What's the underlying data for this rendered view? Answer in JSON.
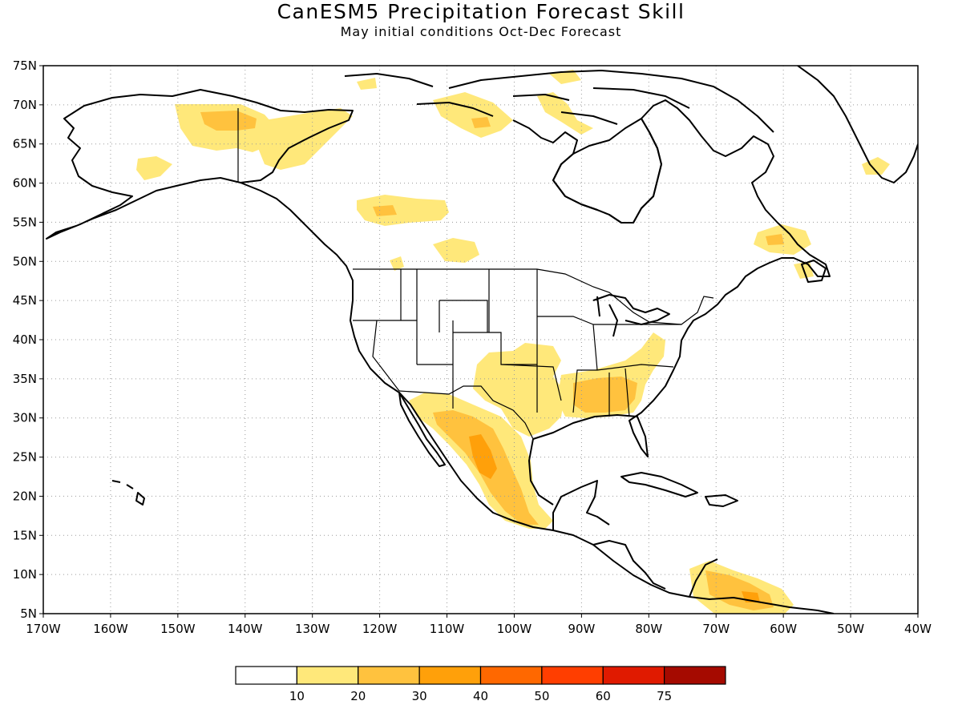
{
  "title": "CanESM5 Precipitation Forecast Skill",
  "subtitle": "May initial conditions  Oct-Dec Forecast",
  "map": {
    "region": "North America",
    "projection": "cylindrical lat-lon",
    "lon_range": [
      -170,
      -40
    ],
    "lat_range": [
      5,
      75
    ],
    "lat_ticks": [
      "5N",
      "10N",
      "15N",
      "20N",
      "25N",
      "30N",
      "35N",
      "40N",
      "45N",
      "50N",
      "55N",
      "60N",
      "65N",
      "70N",
      "75N"
    ],
    "lon_ticks": [
      "170W",
      "160W",
      "150W",
      "140W",
      "130W",
      "120W",
      "110W",
      "100W",
      "90W",
      "80W",
      "70W",
      "60W",
      "50W",
      "40W"
    ],
    "gridlines": "dotted",
    "skill_regions": [
      {
        "name": "alaska-north-slope",
        "level": "10-20"
      },
      {
        "name": "alaska-north-slope-core",
        "level": "20-30"
      },
      {
        "name": "yukon",
        "level": "10-20"
      },
      {
        "name": "alaska-southwest",
        "level": "10-20"
      },
      {
        "name": "central-canada",
        "level": "10-20"
      },
      {
        "name": "saskatchewan",
        "level": "10-20"
      },
      {
        "name": "arctic-archipelago",
        "level": "10-20"
      },
      {
        "name": "labrador",
        "level": "10-20"
      },
      {
        "name": "greenland-south",
        "level": "10-20"
      },
      {
        "name": "southern-plains",
        "level": "10-20"
      },
      {
        "name": "southeast-us",
        "level": "10-20"
      },
      {
        "name": "southeast-us-core",
        "level": "20-30"
      },
      {
        "name": "northwest-mexico",
        "level": "20-30"
      },
      {
        "name": "sierra-madre",
        "level": "30-40"
      },
      {
        "name": "southern-mexico",
        "level": "20-30"
      },
      {
        "name": "venezuela",
        "level": "20-30"
      }
    ]
  },
  "colorbar": {
    "labels": [
      "10",
      "20",
      "30",
      "40",
      "50",
      "60",
      "75"
    ],
    "colors": [
      "#ffffff",
      "#ffe87a",
      "#ffc23e",
      "#ffa00a",
      "#ff6800",
      "#ff3e00",
      "#e01a00",
      "#a50a00"
    ]
  }
}
